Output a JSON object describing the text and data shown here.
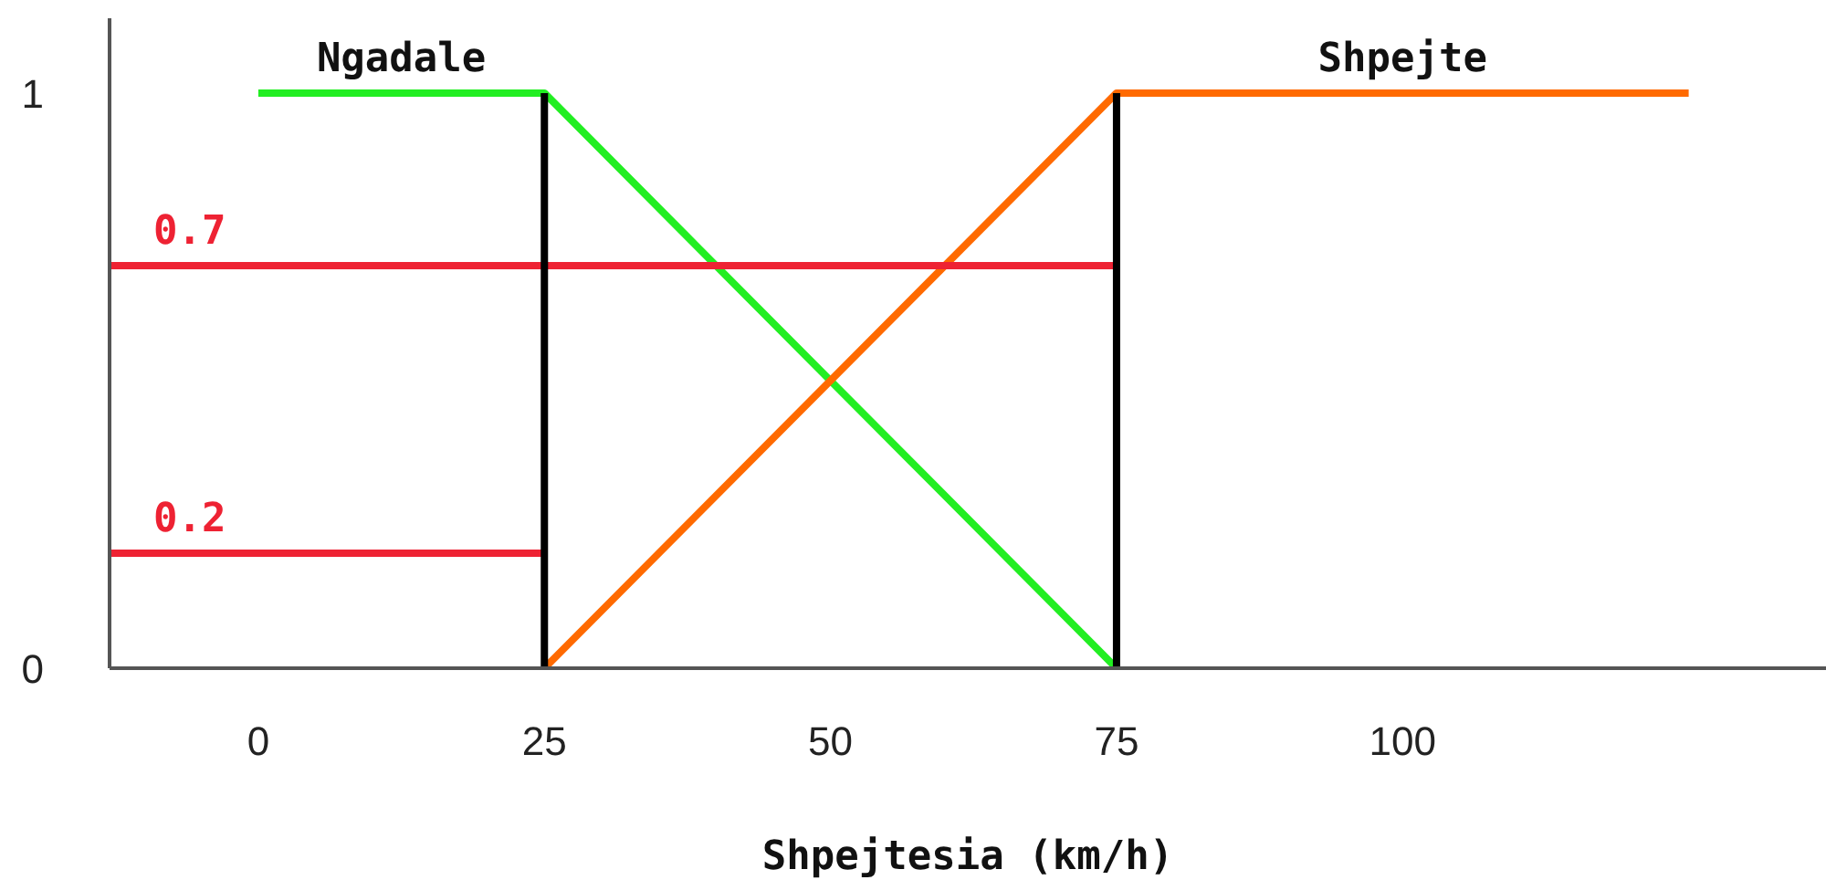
{
  "chart_data": {
    "type": "line",
    "xlabel": "Shpejtesia (km/h)",
    "series": [
      {
        "name": "Ngadale",
        "color": "#22ee22",
        "x": [
          0,
          25,
          75
        ],
        "values": [
          1,
          1,
          0
        ]
      },
      {
        "name": "Shpejte",
        "color": "#ff6a00",
        "x": [
          25,
          75,
          125
        ],
        "values": [
          0,
          1,
          1
        ]
      },
      {
        "color": "#ee2233",
        "x": [
          -13,
          75
        ],
        "values": [
          0.7,
          0.7
        ]
      },
      {
        "color": "#ee2233",
        "x": [
          -13,
          25
        ],
        "values": [
          0.2,
          0.2
        ]
      },
      {
        "color": "#000000",
        "x": [
          25,
          25
        ],
        "values": [
          0,
          1
        ]
      },
      {
        "color": "#000000",
        "x": [
          75,
          75
        ],
        "values": [
          0,
          1
        ]
      }
    ],
    "annotations": [
      {
        "text": "0.7",
        "x": -6,
        "y": 0.7
      },
      {
        "text": "0.2",
        "x": -6,
        "y": 0.2
      }
    ],
    "xlim": [
      -13,
      137
    ],
    "xticks": [
      0,
      25,
      50,
      75,
      100
    ],
    "ylim": [
      0,
      1.13
    ],
    "yticks": [
      0,
      1
    ],
    "grid": false,
    "legend": false,
    "marker": "none",
    "line_style": "solid"
  }
}
